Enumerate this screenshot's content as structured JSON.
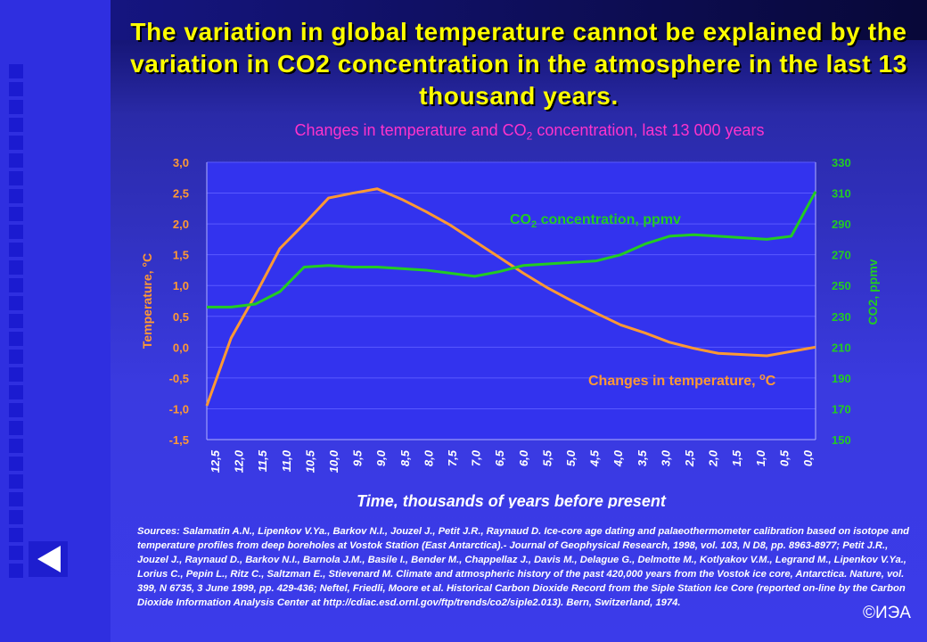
{
  "slide": {
    "title": "The variation in global temperature cannot be explained by the variation in CO2 concentration in the atmosphere in the last 13 thousand years.",
    "subtitle_pre": "Changes in temperature and CO",
    "subtitle_sub": "2",
    "subtitle_post": " concentration, last 13 000 years",
    "sources": "Sources: Salamatin A.N., Lipenkov V.Ya., Barkov N.I., Jouzel J., Petit J.R., Raynaud D. Ice-core age dating and palaeothermometer calibration based on isotope and temperature profiles from deep boreholes at Vostok Station (East Antarctica).- Journal of Geophysical Research, 1998, vol. 103, N D8, pp. 8963-8977; Petit J.R., Jouzel J., Raynaud D., Barkov N.I., Barnola J.M., Basile I., Bender M., Chappellaz J., Davis M., Delague G., Delmotte M., Kotlyakov V.M., Legrand M., Lipenkov V.Ya., Lorius C., Pepin L., Ritz C., Saltzman E., Stievenard M. Climate and atmospheric history of the past 420,000 years from the Vostok ice core, Antarctica. Nature, vol. 399, N 6735, 3 June 1999, pp. 429-436; Neftel, Friedli, Moore et al. Historical Carbon Dioxide Record from the Siple Station Ice Core (reported on-line by the Carbon Dioxide Information Analysis Center at http://cdiac.esd.ornl.gov/ftp/trends/co2/siple2.013). Bern, Switzerland, 1974.",
    "copyright": "©ИЭА"
  },
  "colors": {
    "temperature": "#ff9933",
    "co2": "#22cc22",
    "axis_text": "#ffffff",
    "title": "#ffff00",
    "subtitle": "#ff33cc"
  },
  "chart_data": {
    "type": "line",
    "title": "Changes in temperature and CO2 concentration, last 13 000 years",
    "xlabel": "Time, thousands of years before present",
    "ylabel_left": "Temperature, °C",
    "ylabel_right": "CO2, ppmv",
    "x_ticks": [
      "12,5",
      "12,0",
      "11,5",
      "11,0",
      "10,5",
      "10,0",
      "9,5",
      "9,0",
      "8,5",
      "8,0",
      "7,5",
      "7,0",
      "6,5",
      "6,0",
      "5,5",
      "5,0",
      "4,5",
      "4,0",
      "3,5",
      "3,0",
      "2,5",
      "2,0",
      "1,5",
      "1,0",
      "0,5",
      "0,0"
    ],
    "y_left_ticks": [
      "3,0",
      "2,5",
      "2,0",
      "1,5",
      "1,0",
      "0,5",
      "0,0",
      "-0,5",
      "-1,0",
      "-1,5"
    ],
    "y_right_ticks": [
      "330",
      "310",
      "290",
      "270",
      "250",
      "230",
      "210",
      "190",
      "170",
      "150"
    ],
    "ylim_left": [
      -1.5,
      3.0
    ],
    "ylim_right": [
      150,
      330
    ],
    "xlim": [
      12.5,
      0.0
    ],
    "x_reversed": true,
    "grid": "horizontal",
    "series": [
      {
        "name": "Changes in temperature, °C",
        "axis": "left",
        "x": [
          12.5,
          12.0,
          11.5,
          11.0,
          10.5,
          10.0,
          9.5,
          9.0,
          8.5,
          8.0,
          7.5,
          7.0,
          6.5,
          6.0,
          5.5,
          5.0,
          4.5,
          4.0,
          3.5,
          3.0,
          2.5,
          2.0,
          1.5,
          1.0,
          0.5,
          0.0
        ],
        "values": [
          -0.95,
          0.15,
          0.85,
          1.6,
          2.0,
          2.42,
          2.5,
          2.57,
          2.4,
          2.2,
          1.98,
          1.72,
          1.46,
          1.2,
          0.96,
          0.75,
          0.55,
          0.36,
          0.23,
          0.08,
          -0.02,
          -0.1,
          -0.12,
          -0.14,
          -0.07,
          0.0
        ]
      },
      {
        "name": "CO2 concentration, ppmv",
        "axis": "right",
        "x": [
          12.5,
          12.0,
          11.5,
          11.0,
          10.5,
          10.0,
          9.5,
          9.0,
          8.5,
          8.0,
          7.5,
          7.0,
          6.5,
          6.0,
          5.5,
          5.0,
          4.5,
          4.0,
          3.5,
          3.0,
          2.5,
          2.0,
          1.5,
          1.0,
          0.5,
          0.0
        ],
        "values": [
          236,
          236,
          238,
          246,
          262,
          263,
          262,
          262,
          261,
          260,
          258,
          256,
          259,
          263,
          264,
          265,
          266,
          270,
          277,
          282,
          283,
          282,
          281,
          280,
          282,
          311
        ]
      }
    ],
    "annotations": [
      {
        "text_pre": "CO",
        "text_sub": "2",
        "text_post": " concentration, ppmv",
        "series": "co2"
      },
      {
        "text_pre": "Changes in temperature, ",
        "text_sup": "o",
        "text_post": "C",
        "series": "temperature"
      }
    ]
  }
}
